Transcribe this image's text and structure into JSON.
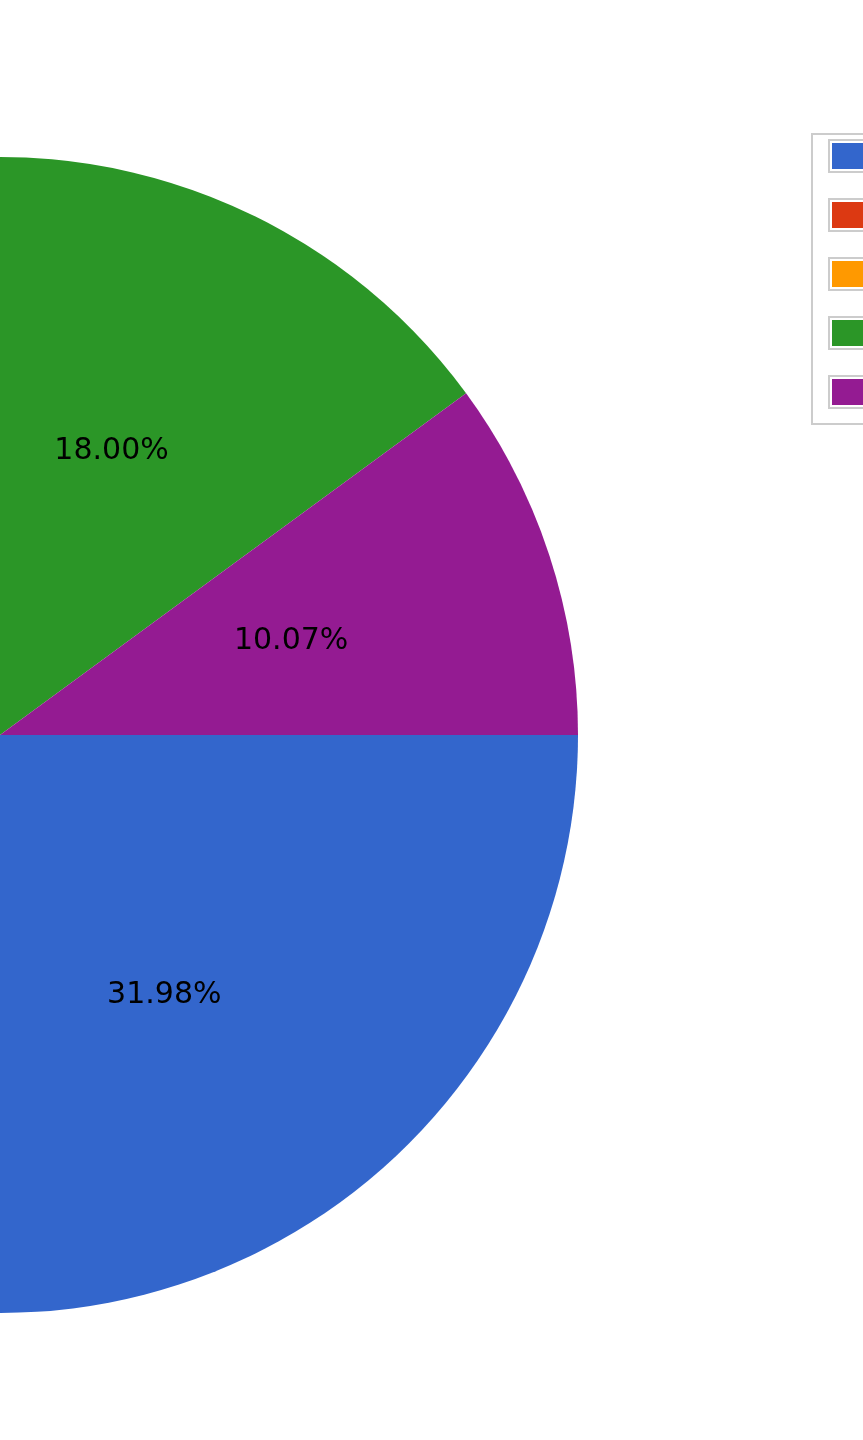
{
  "chart_data": {
    "type": "pie",
    "categories": [
      null,
      null,
      null,
      null,
      null
    ],
    "values": [
      31.98,
      null,
      null,
      18.0,
      10.07
    ],
    "value_labels": [
      "31.98%",
      null,
      null,
      "18.00%",
      "10.07%"
    ],
    "colors": [
      "#3366cc",
      "#dc3912",
      "#ff9900",
      "#2b9627",
      "#941b92"
    ]
  }
}
